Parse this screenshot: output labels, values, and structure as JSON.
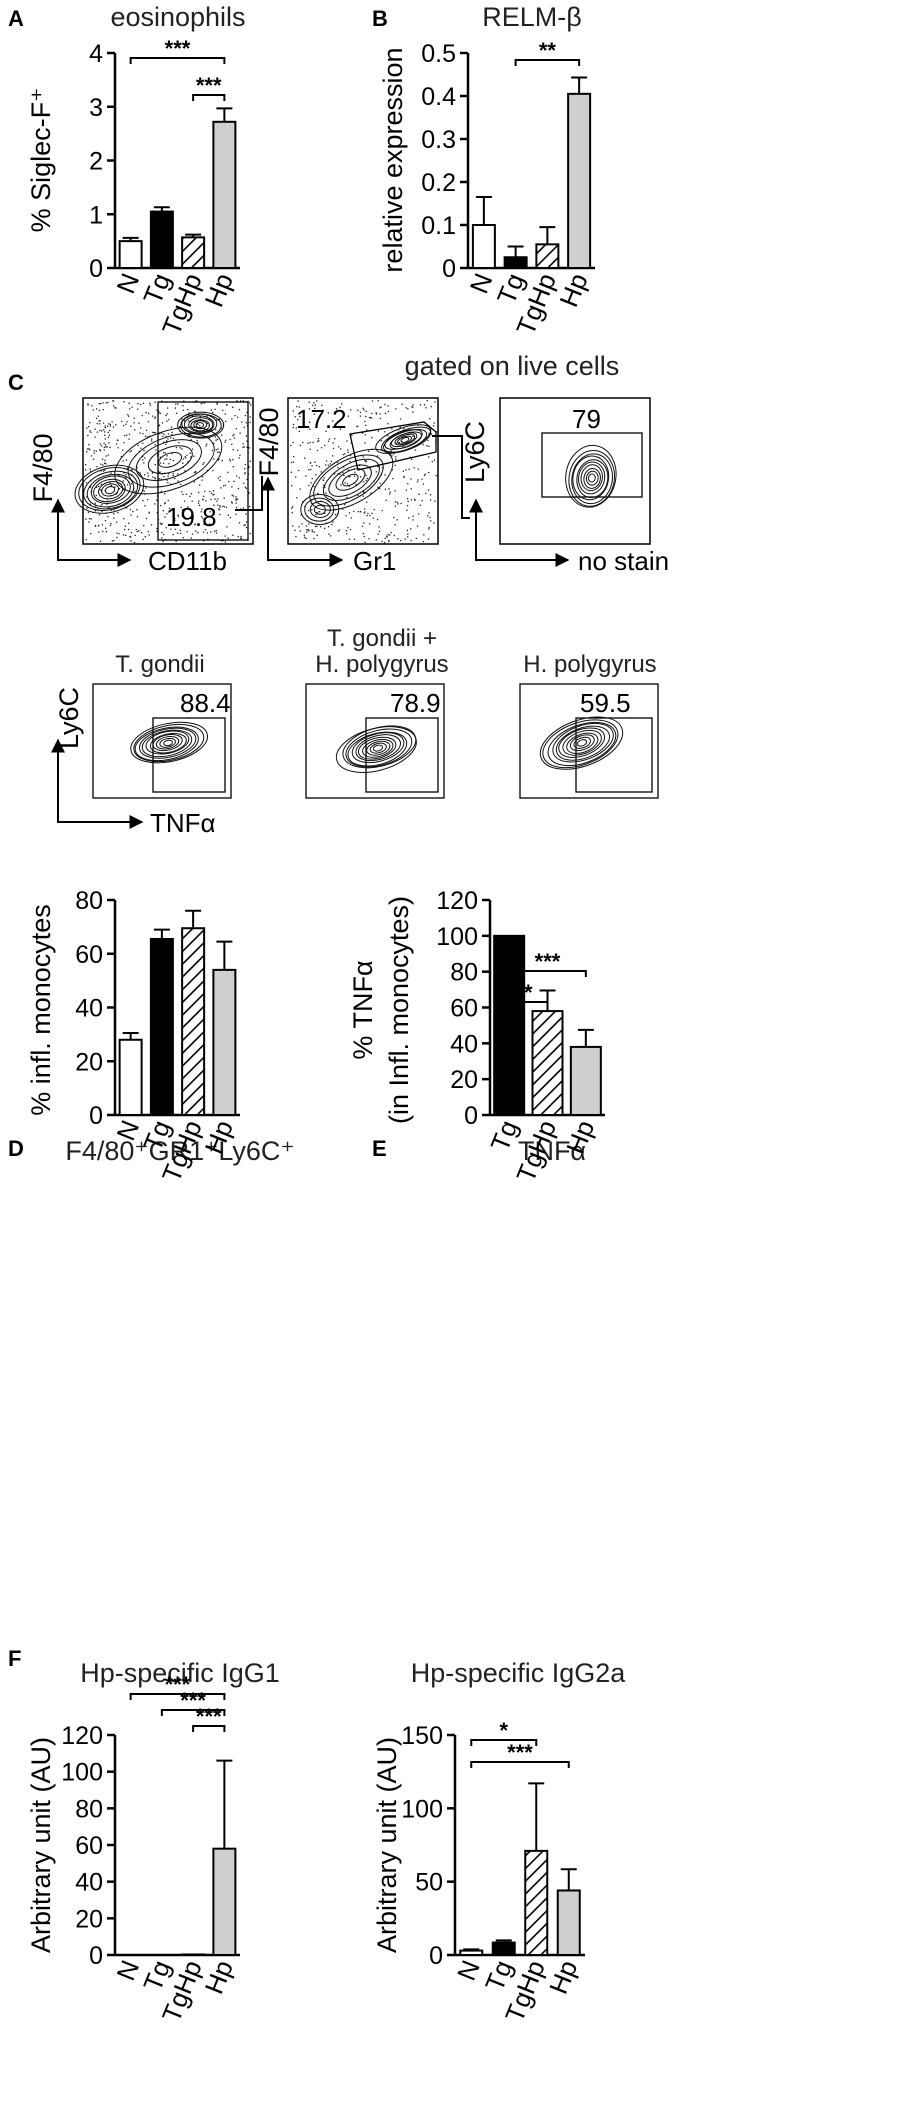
{
  "panels": {
    "A": {
      "letter": "A"
    },
    "B": {
      "letter": "B"
    },
    "C": {
      "letter": "C",
      "title": "gated on live cells"
    },
    "D": {
      "letter": "D"
    },
    "E": {
      "letter": "E"
    },
    "F": {
      "letter": "F"
    }
  },
  "flow": {
    "top": {
      "plot1": {
        "y_label": "F4/80",
        "x_label": "CD11b",
        "gate_value": "19.8"
      },
      "plot2": {
        "y_label": "F4/80",
        "x_label": "Gr1",
        "gate_value": "17.2"
      },
      "plot3": {
        "y_label": "Ly6C",
        "x_label": "no stain",
        "gate_value": "79"
      }
    },
    "bottom": {
      "y_label": "Ly6C",
      "x_label": "TNFα",
      "plot1": {
        "title": "T. gondii",
        "gate_value": "88.4"
      },
      "plot2": {
        "title_line1": "T. gondii +",
        "title_line2": "H. polygyrus",
        "gate_value": "78.9"
      },
      "plot3": {
        "title": "H. polygyrus",
        "gate_value": "59.5"
      }
    }
  },
  "chart_data": [
    {
      "panel": "A",
      "type": "bar",
      "title": "eosinophils",
      "ylabel": "% Siglec-F⁺",
      "categories": [
        "N",
        "Tg",
        "TgHp",
        "Hp"
      ],
      "values": [
        0.5,
        1.05,
        0.57,
        2.72
      ],
      "errors": [
        0.06,
        0.08,
        0.05,
        0.25
      ],
      "ylim": [
        0,
        4
      ],
      "yticks": [
        "0",
        "1",
        "2",
        "3",
        "4"
      ],
      "fills": [
        "white",
        "black",
        "hatch",
        "gray"
      ],
      "significance": [
        {
          "from": "N",
          "to": "Hp",
          "label": "***"
        },
        {
          "from": "TgHp",
          "to": "Hp",
          "label": "***"
        }
      ]
    },
    {
      "panel": "B",
      "type": "bar",
      "title": "RELM-β",
      "ylabel": "relative  expression",
      "categories": [
        "N",
        "Tg",
        "TgHp",
        "Hp"
      ],
      "values": [
        0.1,
        0.025,
        0.055,
        0.405
      ],
      "errors": [
        0.065,
        0.025,
        0.04,
        0.038
      ],
      "ylim": [
        0,
        0.5
      ],
      "yticks": [
        "0",
        "0.1",
        "0.2",
        "0.3",
        "0.4",
        "0.5"
      ],
      "fills": [
        "white",
        "black",
        "hatch",
        "gray"
      ],
      "significance": [
        {
          "from": "Tg",
          "to": "Hp",
          "label": "**"
        }
      ]
    },
    {
      "panel": "D",
      "type": "bar",
      "title": "F4/80⁺GR1⁺Ly6C⁺",
      "ylabel": "% infl. monocytes",
      "categories": [
        "N",
        "Tg",
        "TgHp",
        "Hp"
      ],
      "values": [
        28,
        65.5,
        69.5,
        54
      ],
      "errors": [
        2.5,
        3.5,
        6.5,
        10.5
      ],
      "ylim": [
        0,
        80
      ],
      "yticks": [
        "0",
        "20",
        "40",
        "60",
        "80"
      ],
      "fills": [
        "white",
        "black",
        "hatch",
        "gray"
      ],
      "significance": []
    },
    {
      "panel": "E",
      "type": "bar",
      "title": "TNFα",
      "ylabel": "% TNFα",
      "ylabel2": "(in Infl. monocytes)",
      "categories": [
        "Tg",
        "TgHp",
        "Hp"
      ],
      "values": [
        100,
        58,
        38
      ],
      "errors": [
        0,
        11.5,
        9.5
      ],
      "ylim": [
        0,
        120
      ],
      "yticks": [
        "0",
        "20",
        "40",
        "60",
        "80",
        "100",
        "120"
      ],
      "fills": [
        "black",
        "hatch",
        "gray"
      ],
      "significance": [
        {
          "from": "Tg",
          "to": "TgHp",
          "label": "*"
        },
        {
          "from": "Tg",
          "to": "Hp",
          "label": "***"
        }
      ]
    },
    {
      "panel": "F1",
      "type": "bar",
      "title": "Hp-specific IgG1",
      "ylabel": "Arbitrary unit (AU)",
      "categories": [
        "N",
        "Tg",
        "TgHp",
        "Hp"
      ],
      "values": [
        0,
        0,
        0.3,
        58
      ],
      "errors": [
        0,
        0,
        0,
        48
      ],
      "ylim": [
        0,
        120
      ],
      "yticks": [
        "0",
        "20",
        "40",
        "60",
        "80",
        "100",
        "120"
      ],
      "fills": [
        "white",
        "black",
        "hatch",
        "gray"
      ],
      "significance": [
        {
          "from": "N",
          "to": "Hp",
          "label": "***"
        },
        {
          "from": "Tg",
          "to": "Hp",
          "label": "***"
        },
        {
          "from": "TgHp",
          "to": "Hp",
          "label": "***"
        }
      ]
    },
    {
      "panel": "F2",
      "type": "bar",
      "title": "Hp-specific IgG2a",
      "ylabel": "Arbitrary unit (AU)",
      "categories": [
        "N",
        "Tg",
        "TgHp",
        "Hp"
      ],
      "values": [
        3,
        8.5,
        71,
        44
      ],
      "errors": [
        0.8,
        1.5,
        46,
        14.5
      ],
      "ylim": [
        0,
        150
      ],
      "yticks": [
        "0",
        "50",
        "100",
        "150"
      ],
      "fills": [
        "white",
        "black",
        "hatch",
        "gray"
      ],
      "significance": [
        {
          "from": "N",
          "to": "TgHp",
          "label": "*"
        },
        {
          "from": "N",
          "to": "Hp",
          "label": "***"
        }
      ]
    }
  ]
}
